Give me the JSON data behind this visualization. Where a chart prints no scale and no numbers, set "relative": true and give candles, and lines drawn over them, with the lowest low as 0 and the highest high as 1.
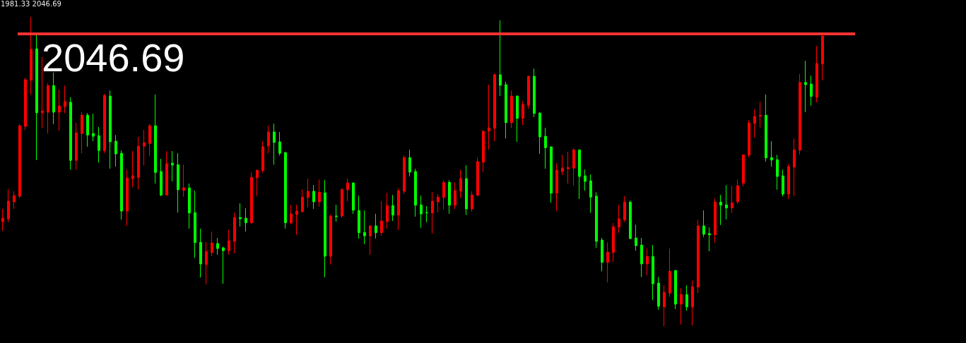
{
  "chart_data": {
    "type": "candlestick",
    "relative": true,
    "annotations": [
      "1981.33 2046.69",
      "2046.69"
    ],
    "categories": [
      null,
      null,
      null,
      null,
      null,
      null,
      null,
      null,
      null,
      null,
      null,
      null,
      null,
      null,
      null,
      null,
      null,
      null,
      null,
      null,
      null,
      null,
      null,
      null,
      null,
      null,
      null,
      null,
      null,
      null,
      null,
      null,
      null,
      null,
      null,
      null,
      null,
      null,
      null,
      null,
      null,
      null,
      null,
      null,
      null,
      null,
      null,
      null,
      null,
      null,
      null,
      null,
      null,
      null,
      null,
      null,
      null,
      null,
      null,
      null,
      null,
      null,
      null,
      null,
      null,
      null,
      null,
      null,
      null,
      null,
      null,
      null,
      null,
      null,
      null,
      null,
      null,
      null,
      null,
      null,
      null,
      null,
      null,
      null,
      null,
      null,
      null,
      null,
      null,
      null,
      null,
      null,
      null,
      null,
      null,
      null,
      null,
      null,
      null,
      null,
      null,
      null,
      null,
      null,
      null,
      null,
      null,
      null,
      null,
      null,
      null,
      null,
      null,
      null,
      null,
      null,
      null,
      null,
      null,
      null,
      null,
      null,
      null,
      null,
      null,
      null,
      null,
      null,
      null,
      null,
      null,
      null,
      null,
      null,
      null,
      null,
      null,
      null,
      null,
      null,
      null,
      null,
      null,
      null,
      null,
      null
    ],
    "ohlc": [
      [
        0.338,
        0.379,
        0.308,
        0.349
      ],
      [
        0.347,
        0.442,
        0.336,
        0.404
      ],
      [
        0.402,
        0.436,
        0.379,
        0.422
      ],
      [
        0.42,
        0.653,
        0.414,
        0.648
      ],
      [
        0.646,
        0.803,
        0.634,
        0.797
      ],
      [
        0.795,
        1,
        0.749,
        0.895
      ],
      [
        0.897,
        0.941,
        0.537,
        0.69
      ],
      [
        0.69,
        0.87,
        0.641,
        0.696
      ],
      [
        0.692,
        0.786,
        0.623,
        0.778
      ],
      [
        0.778,
        0.82,
        0.653,
        0.692
      ],
      [
        0.692,
        0.765,
        0.632,
        0.712
      ],
      [
        0.71,
        0.778,
        0.689,
        0.726
      ],
      [
        0.724,
        0.74,
        0.506,
        0.536
      ],
      [
        0.536,
        0.657,
        0.506,
        0.625
      ],
      [
        0.623,
        0.692,
        0.559,
        0.682
      ],
      [
        0.682,
        0.689,
        0.58,
        0.618
      ],
      [
        0.623,
        0.687,
        0.598,
        0.614
      ],
      [
        0.616,
        0.644,
        0.529,
        0.568
      ],
      [
        0.568,
        0.751,
        0.559,
        0.746
      ],
      [
        0.744,
        0.762,
        0.509,
        0.596
      ],
      [
        0.598,
        0.618,
        0.516,
        0.557
      ],
      [
        0.559,
        0.568,
        0.344,
        0.372
      ],
      [
        0.372,
        0.506,
        0.324,
        0.479
      ],
      [
        0.477,
        0.566,
        0.449,
        0.486
      ],
      [
        0.481,
        0.612,
        0.442,
        0.582
      ],
      [
        0.582,
        0.634,
        0.52,
        0.593
      ],
      [
        0.591,
        0.653,
        0.55,
        0.648
      ],
      [
        0.648,
        0.749,
        0.461,
        0.497
      ],
      [
        0.5,
        0.541,
        0.42,
        0.424
      ],
      [
        0.424,
        0.566,
        0.423,
        0.525
      ],
      [
        0.527,
        0.566,
        0.468,
        0.521
      ],
      [
        0.522,
        0.559,
        0.367,
        0.441
      ],
      [
        0.439,
        0.522,
        0.418,
        0.447
      ],
      [
        0.447,
        0.461,
        0.315,
        0.366
      ],
      [
        0.367,
        0.438,
        0.221,
        0.27
      ],
      [
        0.271,
        0.315,
        0.157,
        0.201
      ],
      [
        0.199,
        0.271,
        0.135,
        0.241
      ],
      [
        0.238,
        0.305,
        0.226,
        0.269
      ],
      [
        0.267,
        0.285,
        0.231,
        0.251
      ],
      [
        0.253,
        0.257,
        0.137,
        0.244
      ],
      [
        0.244,
        0.312,
        0.231,
        0.276
      ],
      [
        0.274,
        0.367,
        0.235,
        0.351
      ],
      [
        0.351,
        0.397,
        0.322,
        0.347
      ],
      [
        0.349,
        0.381,
        0.306,
        0.334
      ],
      [
        0.334,
        0.497,
        0.331,
        0.481
      ],
      [
        0.48,
        0.506,
        0.42,
        0.504
      ],
      [
        0.503,
        0.598,
        0.496,
        0.58
      ],
      [
        0.583,
        0.648,
        0.559,
        0.628
      ],
      [
        0.628,
        0.655,
        0.522,
        0.594
      ],
      [
        0.596,
        0.628,
        0.552,
        0.559
      ],
      [
        0.561,
        0.564,
        0.315,
        0.334
      ],
      [
        0.334,
        0.392,
        0.329,
        0.363
      ],
      [
        0.361,
        0.392,
        0.295,
        0.372
      ],
      [
        0.37,
        0.442,
        0.368,
        0.417
      ],
      [
        0.416,
        0.477,
        0.384,
        0.436
      ],
      [
        0.436,
        0.456,
        0.379,
        0.402
      ],
      [
        0.402,
        0.474,
        0.386,
        0.433
      ],
      [
        0.431,
        0.472,
        0.158,
        0.226
      ],
      [
        0.226,
        0.36,
        0.199,
        0.356
      ],
      [
        0.356,
        0.392,
        0.338,
        0.354
      ],
      [
        0.356,
        0.445,
        0.35,
        0.442
      ],
      [
        0.441,
        0.477,
        0.404,
        0.463
      ],
      [
        0.463,
        0.465,
        0.363,
        0.375
      ],
      [
        0.374,
        0.422,
        0.283,
        0.302
      ],
      [
        0.303,
        0.374,
        0.265,
        0.292
      ],
      [
        0.292,
        0.326,
        0.231,
        0.324
      ],
      [
        0.324,
        0.363,
        0.283,
        0.302
      ],
      [
        0.302,
        0.404,
        0.292,
        0.34
      ],
      [
        0.338,
        0.431,
        0.315,
        0.39
      ],
      [
        0.39,
        0.424,
        0.34,
        0.359
      ],
      [
        0.359,
        0.445,
        0.311,
        0.438
      ],
      [
        0.436,
        0.552,
        0.427,
        0.545
      ],
      [
        0.545,
        0.57,
        0.484,
        0.498
      ],
      [
        0.5,
        0.509,
        0.354,
        0.391
      ],
      [
        0.392,
        0.422,
        0.318,
        0.363
      ],
      [
        0.367,
        0.388,
        0.336,
        0.366
      ],
      [
        0.366,
        0.433,
        0.299,
        0.404
      ],
      [
        0.402,
        0.427,
        0.368,
        0.417
      ],
      [
        0.416,
        0.472,
        0.377,
        0.465
      ],
      [
        0.465,
        0.472,
        0.363,
        0.391
      ],
      [
        0.391,
        0.465,
        0.379,
        0.438
      ],
      [
        0.436,
        0.506,
        0.414,
        0.477
      ],
      [
        0.477,
        0.52,
        0.359,
        0.379
      ],
      [
        0.379,
        0.436,
        0.37,
        0.424
      ],
      [
        0.423,
        0.545,
        0.42,
        0.532
      ],
      [
        0.53,
        0.634,
        0.498,
        0.63
      ],
      [
        0.631,
        0.781,
        0.571,
        0.641
      ],
      [
        0.64,
        0.817,
        0.598,
        0.813
      ],
      [
        0.813,
        0.989,
        0.744,
        0.779
      ],
      [
        0.781,
        0.79,
        0.607,
        0.658
      ],
      [
        0.658,
        0.762,
        0.641,
        0.744
      ],
      [
        0.744,
        0.746,
        0.596,
        0.672
      ],
      [
        0.672,
        0.728,
        0.65,
        0.717
      ],
      [
        0.714,
        0.81,
        0.703,
        0.808
      ],
      [
        0.808,
        0.833,
        0.676,
        0.688
      ],
      [
        0.689,
        0.692,
        0.557,
        0.612
      ],
      [
        0.614,
        0.641,
        0.509,
        0.577
      ],
      [
        0.58,
        0.58,
        0.399,
        0.43
      ],
      [
        0.43,
        0.527,
        0.372,
        0.504
      ],
      [
        0.5,
        0.554,
        0.488,
        0.511
      ],
      [
        0.509,
        0.564,
        0.461,
        0.513
      ],
      [
        0.511,
        0.575,
        0.454,
        0.57
      ],
      [
        0.57,
        0.57,
        0.411,
        0.484
      ],
      [
        0.486,
        0.506,
        0.438,
        0.468
      ],
      [
        0.47,
        0.49,
        0.367,
        0.417
      ],
      [
        0.42,
        0.433,
        0.253,
        0.274
      ],
      [
        0.278,
        0.285,
        0.177,
        0.206
      ],
      [
        0.206,
        0.271,
        0.141,
        0.239
      ],
      [
        0.238,
        0.333,
        0.207,
        0.321
      ],
      [
        0.32,
        0.392,
        0.301,
        0.347
      ],
      [
        0.344,
        0.42,
        0.337,
        0.401
      ],
      [
        0.401,
        0.406,
        0.281,
        0.283
      ],
      [
        0.285,
        0.328,
        0.244,
        0.26
      ],
      [
        0.262,
        0.285,
        0.159,
        0.201
      ],
      [
        0.201,
        0.251,
        0.164,
        0.225
      ],
      [
        0.225,
        0.262,
        0.084,
        0.137
      ],
      [
        0.139,
        0.159,
        0.053,
        0.064
      ],
      [
        0.062,
        0.132,
        0,
        0.109
      ],
      [
        0.107,
        0.251,
        0.095,
        0.177
      ],
      [
        0.18,
        0.18,
        0.055,
        0.071
      ],
      [
        0.071,
        0.123,
        0.005,
        0.102
      ],
      [
        0.102,
        0.132,
        0.05,
        0.062
      ],
      [
        0.062,
        0.148,
        0.002,
        0.127
      ],
      [
        0.126,
        0.344,
        0.107,
        0.324
      ],
      [
        0.324,
        0.374,
        0.288,
        0.297
      ],
      [
        0.299,
        0.319,
        0.242,
        0.295
      ],
      [
        0.295,
        0.413,
        0.27,
        0.401
      ],
      [
        0.401,
        0.424,
        0.327,
        0.391
      ],
      [
        0.392,
        0.456,
        0.345,
        0.382
      ],
      [
        0.382,
        0.454,
        0.366,
        0.399
      ],
      [
        0.402,
        0.474,
        0.395,
        0.454
      ],
      [
        0.462,
        0.554,
        0.452,
        0.554
      ],
      [
        0.553,
        0.666,
        0.546,
        0.657
      ],
      [
        0.656,
        0.701,
        0.61,
        0.678
      ],
      [
        0.679,
        0.726,
        0.642,
        0.682
      ],
      [
        0.682,
        0.749,
        0.532,
        0.544
      ],
      [
        0.545,
        0.598,
        0.516,
        0.537
      ],
      [
        0.538,
        0.554,
        0.441,
        0.484
      ],
      [
        0.486,
        0.506,
        0.42,
        0.427
      ],
      [
        0.427,
        0.525,
        0.411,
        0.516
      ],
      [
        0.514,
        0.607,
        0.42,
        0.57
      ],
      [
        0.569,
        0.815,
        0.555,
        0.788
      ],
      [
        0.788,
        0.858,
        0.692,
        0.781
      ],
      [
        0.783,
        0.81,
        0.713,
        0.743
      ],
      [
        0.74,
        0.906,
        0.724,
        0.849
      ],
      [
        0.848,
        0.941,
        0.795,
        0.938
      ]
    ],
    "colors": [
      "#ff0000",
      "#ff0000",
      "#ff0000",
      "#ff0000",
      "#ff0000",
      "#ff0000",
      "#00ff00",
      "#ff0000",
      "#ff0000",
      "#00ff00",
      "#ff0000",
      "#ff0000",
      "#00ff00",
      "#ff0000",
      "#ff0000",
      "#00ff00",
      "#00ff00",
      "#00ff00",
      "#ff0000",
      "#00ff00",
      "#00ff00",
      "#00ff00",
      "#ff0000",
      "#ff0000",
      "#ff0000",
      "#ff0000",
      "#ff0000",
      "#00ff00",
      "#00ff00",
      "#ff0000",
      "#00ff00",
      "#00ff00",
      "#ff0000",
      "#00ff00",
      "#00ff00",
      "#00ff00",
      "#ff0000",
      "#ff0000",
      "#00ff00",
      "#00ff00",
      "#ff0000",
      "#ff0000",
      "#00ff00",
      "#00ff00",
      "#ff0000",
      "#ff0000",
      "#ff0000",
      "#ff0000",
      "#00ff00",
      "#00ff00",
      "#00ff00",
      "#ff0000",
      "#ff0000",
      "#ff0000",
      "#ff0000",
      "#00ff00",
      "#ff0000",
      "#00ff00",
      "#ff0000",
      "#00ff00",
      "#ff0000",
      "#ff0000",
      "#00ff00",
      "#00ff00",
      "#00ff00",
      "#ff0000",
      "#00ff00",
      "#ff0000",
      "#ff0000",
      "#00ff00",
      "#ff0000",
      "#ff0000",
      "#00ff00",
      "#00ff00",
      "#00ff00",
      "#00ff00",
      "#ff0000",
      "#ff0000",
      "#ff0000",
      "#00ff00",
      "#ff0000",
      "#ff0000",
      "#00ff00",
      "#ff0000",
      "#ff0000",
      "#ff0000",
      "#ff0000",
      "#ff0000",
      "#00ff00",
      "#00ff00",
      "#ff0000",
      "#00ff00",
      "#ff0000",
      "#ff0000",
      "#00ff00",
      "#00ff00",
      "#00ff00",
      "#00ff00",
      "#ff0000",
      "#ff0000",
      "#ff0000",
      "#ff0000",
      "#00ff00",
      "#00ff00",
      "#00ff00",
      "#00ff00",
      "#00ff00",
      "#ff0000",
      "#ff0000",
      "#ff0000",
      "#ff0000",
      "#00ff00",
      "#00ff00",
      "#00ff00",
      "#ff0000",
      "#00ff00",
      "#00ff00",
      "#ff0000",
      "#ff0000",
      "#00ff00",
      "#ff0000",
      "#00ff00",
      "#ff0000",
      "#ff0000",
      "#00ff00",
      "#00ff00",
      "#ff0000",
      "#00ff00",
      "#00ff00",
      "#ff0000",
      "#ff0000",
      "#ff0000",
      "#ff0000",
      "#ff0000",
      "#ff0000",
      "#00ff00",
      "#00ff00",
      "#00ff00",
      "#00ff00",
      "#ff0000",
      "#ff0000",
      "#ff0000",
      "#00ff00",
      "#00ff00",
      "#ff0000",
      "#ff0000"
    ],
    "ref_lines": [
      {
        "axis": "y",
        "value": 0.946,
        "color": "#ff3333",
        "line_style": "solid"
      }
    ]
  }
}
